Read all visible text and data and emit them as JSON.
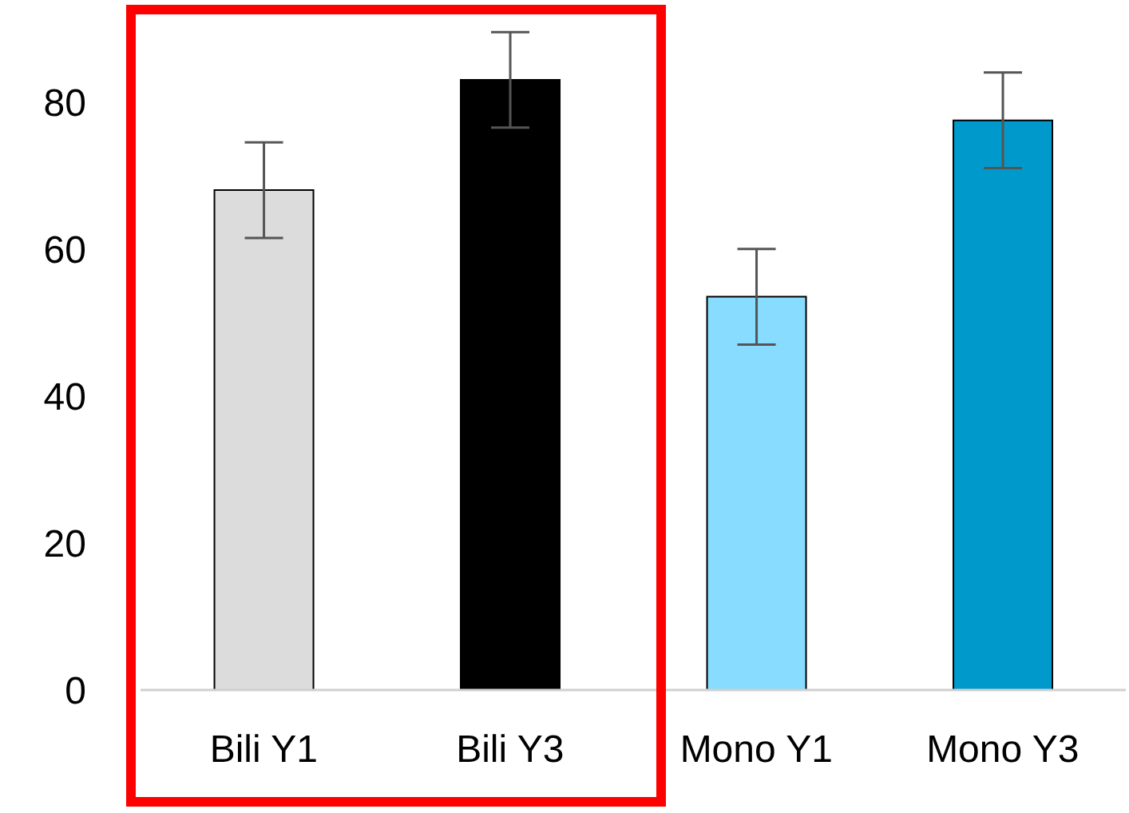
{
  "chart_data": {
    "type": "bar",
    "categories": [
      "Bili Y1",
      "Bili Y3",
      "Mono Y1",
      "Mono Y3"
    ],
    "values": [
      68,
      83,
      53.5,
      77.5
    ],
    "colors": [
      "#dcdcdc",
      "#000000",
      "#87dcff",
      "#0099cc"
    ],
    "errors": [
      6.5,
      6.5,
      6.5,
      6.5
    ],
    "ylim": [
      0,
      93
    ],
    "yticks": [
      0,
      20,
      40,
      60,
      80
    ],
    "grid": false
  }
}
